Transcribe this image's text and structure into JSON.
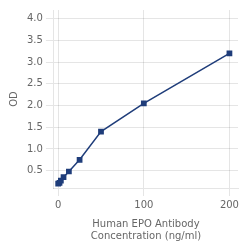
{
  "chart_data": {
    "type": "line",
    "x": [
      0,
      1.5625,
      3.125,
      6.25,
      12.5,
      25,
      50,
      100,
      200
    ],
    "values": [
      0.2,
      0.22,
      0.27,
      0.35,
      0.48,
      0.75,
      1.4,
      2.05,
      3.2
    ],
    "color": "#1f3d7a",
    "marker": "square",
    "xlabel": "Human EPO Antibody\nConcentration (ng/ml)",
    "ylabel": "OD",
    "xlim": [
      -5,
      210
    ],
    "ylim": [
      0.1,
      4.2
    ],
    "xticks": [
      0,
      100,
      200
    ],
    "yticks": [
      0.5,
      {
        "value": 1.0,
        "label": "1.0"
      },
      1.5,
      {
        "value": 2.0,
        "label": "2.0"
      },
      2.5,
      {
        "value": 3.0,
        "label": "3.0"
      },
      3.5,
      {
        "value": 4.0,
        "label": "4.0"
      }
    ],
    "grid": true
  }
}
